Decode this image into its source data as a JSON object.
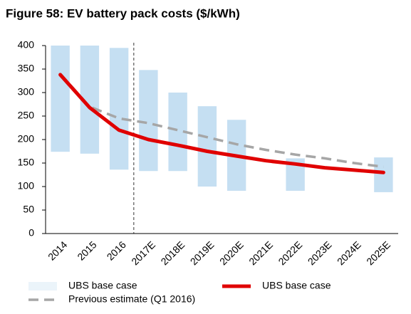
{
  "chart_data": {
    "type": "range_line",
    "title": "Figure 58: EV battery pack costs ($/kWh)",
    "categories": [
      "2014",
      "2015",
      "2016",
      "2017E",
      "2018E",
      "2019E",
      "2020E",
      "2021E",
      "2022E",
      "2023E",
      "2024E",
      "2025E"
    ],
    "ylim": [
      0,
      400
    ],
    "yticks": [
      0,
      50,
      100,
      150,
      200,
      250,
      300,
      350,
      400
    ],
    "series": [
      {
        "name": "UBS base case",
        "type": "range",
        "color": "#c5dff2",
        "low": [
          174,
          170,
          136,
          133,
          133,
          100,
          91,
          null,
          91,
          null,
          null,
          88
        ],
        "high": [
          400,
          400,
          395,
          348,
          300,
          271,
          242,
          null,
          160,
          null,
          null,
          162
        ]
      },
      {
        "name": "UBS base case",
        "type": "line",
        "color": "#e00000",
        "values": [
          338,
          268,
          220,
          200,
          188,
          175,
          165,
          155,
          148,
          140,
          135,
          130
        ]
      },
      {
        "name": "Previous estimate (Q1 2016)",
        "type": "dashed",
        "color": "#a6a6a6",
        "values": [
          340,
          270,
          245,
          235,
          220,
          205,
          190,
          178,
          168,
          160,
          150,
          142
        ]
      }
    ]
  }
}
